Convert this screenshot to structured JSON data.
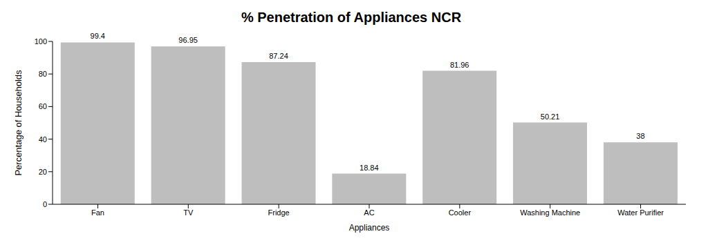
{
  "chart_data": {
    "type": "bar",
    "title": "% Penetration of Appliances NCR",
    "x_label": "Appliances",
    "y_label": "Percentage of Households",
    "categories": [
      "Fan",
      "TV",
      "Fridge",
      "AC",
      "Cooler",
      "Washing Machine",
      "Water Purifier"
    ],
    "values": [
      99.4,
      96.95,
      87.24,
      18.84,
      81.96,
      50.21,
      38
    ],
    "color": "#bebebe",
    "ylim": [
      0,
      100
    ],
    "yticks": [
      0,
      20,
      40,
      60,
      80,
      100
    ],
    "grid": false,
    "data_labels": true
  }
}
